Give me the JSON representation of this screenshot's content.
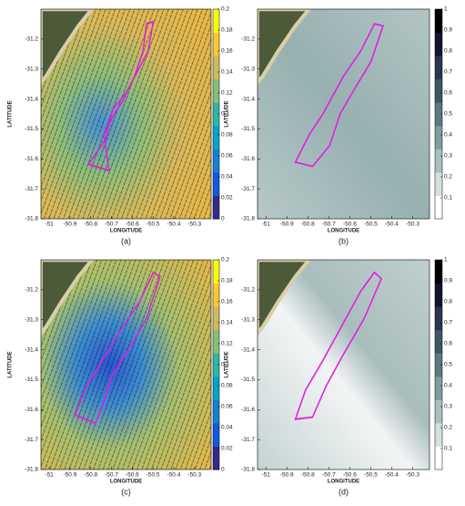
{
  "chart_data": [
    {
      "type": "heatmap",
      "xlabel": "LONGITUDE",
      "ylabel": "LATITUDE",
      "caption": "(a)",
      "xlim": [
        -51.04,
        -50.22
      ],
      "ylim": [
        -31.8,
        -31.1
      ],
      "xticks": [
        -51,
        -50.9,
        -50.8,
        -50.7,
        -50.6,
        -50.5,
        -50.4,
        -50.3
      ],
      "yticks": [
        -31.8,
        -31.7,
        -31.6,
        -31.5,
        -31.4,
        -31.3,
        -31.2
      ],
      "clim": [
        0,
        0.2
      ],
      "cticks": [
        0,
        0.02,
        0.04,
        0.06,
        0.08,
        0.1,
        0.12,
        0.14,
        0.16,
        0.18,
        0.2
      ],
      "colormap": [
        "#352a87",
        "#0f5cdd",
        "#1481d6",
        "#06a4ca",
        "#2eb7a4",
        "#87bf77",
        "#d1bb59",
        "#fec832",
        "#f9fb0e"
      ]
    },
    {
      "type": "heatmap",
      "xlabel": "LONGITUDE",
      "ylabel": "LATITUDE",
      "caption": "(b)",
      "xlim": [
        -51.04,
        -50.22
      ],
      "ylim": [
        -31.8,
        -31.1
      ],
      "xticks": [
        -51,
        -50.9,
        -50.8,
        -50.7,
        -50.6,
        -50.5,
        -50.4,
        -50.3
      ],
      "yticks": [
        -31.8,
        -31.7,
        -31.6,
        -31.5,
        -31.4,
        -31.3,
        -31.2
      ],
      "clim": [
        0,
        1
      ],
      "cticks": [
        0.1,
        0.2,
        0.3,
        0.4,
        0.5,
        0.6,
        0.7,
        0.8,
        0.9,
        1
      ],
      "colormap": [
        "#ffffff",
        "#d7e0e0",
        "#a9bebe",
        "#7f9e9e",
        "#5a7a80",
        "#3f5665",
        "#2a3550",
        "#121430",
        "#000000"
      ]
    },
    {
      "type": "heatmap",
      "xlabel": "LONGITUDE",
      "ylabel": "LATITUDE",
      "caption": "(c)",
      "xlim": [
        -51.04,
        -50.22
      ],
      "ylim": [
        -31.8,
        -31.1
      ],
      "xticks": [
        -51,
        -50.9,
        -50.8,
        -50.7,
        -50.6,
        -50.5,
        -50.4,
        -50.3
      ],
      "yticks": [
        -31.8,
        -31.7,
        -31.6,
        -31.5,
        -31.4,
        -31.3,
        -31.2
      ],
      "clim": [
        0,
        0.2
      ],
      "cticks": [
        0,
        0.02,
        0.04,
        0.06,
        0.08,
        0.1,
        0.12,
        0.14,
        0.16,
        0.18,
        0.2
      ],
      "colormap": [
        "#352a87",
        "#0f5cdd",
        "#1481d6",
        "#06a4ca",
        "#2eb7a4",
        "#87bf77",
        "#d1bb59",
        "#fec832",
        "#f9fb0e"
      ]
    },
    {
      "type": "heatmap",
      "xlabel": "LONGITUDE",
      "ylabel": "LATITUDE",
      "caption": "(d)",
      "xlim": [
        -51.04,
        -50.22
      ],
      "ylim": [
        -31.8,
        -31.1
      ],
      "xticks": [
        -51,
        -50.9,
        -50.8,
        -50.7,
        -50.6,
        -50.5,
        -50.4,
        -50.3
      ],
      "yticks": [
        -31.8,
        -31.7,
        -31.6,
        -31.5,
        -31.4,
        -31.3,
        -31.2
      ],
      "clim": [
        0,
        1
      ],
      "cticks": [
        0.1,
        0.2,
        0.3,
        0.4,
        0.5,
        0.6,
        0.7,
        0.8,
        0.9,
        1
      ],
      "colormap": [
        "#ffffff",
        "#d7e0e0",
        "#a9bebe",
        "#7f9e9e",
        "#5a7a80",
        "#3f5665",
        "#2a3550",
        "#121430",
        "#000000"
      ]
    }
  ]
}
